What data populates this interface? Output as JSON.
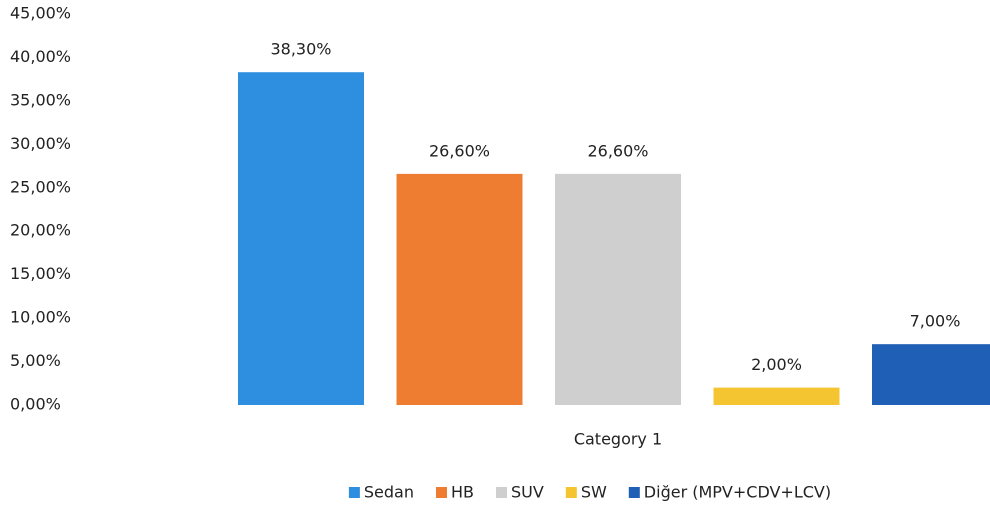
{
  "chart_data": {
    "type": "bar",
    "categories": [
      "Category 1"
    ],
    "series": [
      {
        "name": "Sedan",
        "color": "#2e8fe0",
        "values": [
          38.3
        ],
        "value_labels": [
          "38,30%"
        ]
      },
      {
        "name": "HB",
        "color": "#ef7d31",
        "values": [
          26.6
        ],
        "value_labels": [
          "26,60%"
        ]
      },
      {
        "name": "SUV",
        "color": "#cfcfcf",
        "values": [
          26.6
        ],
        "value_labels": [
          "26,60%"
        ]
      },
      {
        "name": "SW",
        "color": "#f5c431",
        "values": [
          2.0
        ],
        "value_labels": [
          "2,00%"
        ]
      },
      {
        "name": "Diğer (MPV+CDV+LCV)",
        "color": "#1f5fb5",
        "values": [
          7.0
        ],
        "value_labels": [
          "7,00%"
        ]
      }
    ],
    "ylim": [
      0,
      45
    ],
    "yticks": [
      {
        "value": 0,
        "label": "0,00%"
      },
      {
        "value": 5,
        "label": "5,00%"
      },
      {
        "value": 10,
        "label": "10,00%"
      },
      {
        "value": 15,
        "label": "15,00%"
      },
      {
        "value": 20,
        "label": "20,00%"
      },
      {
        "value": 25,
        "label": "25,00%"
      },
      {
        "value": 30,
        "label": "30,00%"
      },
      {
        "value": 35,
        "label": "35,00%"
      },
      {
        "value": 40,
        "label": "40,00%"
      },
      {
        "value": 45,
        "label": "45,00%"
      }
    ],
    "grid": false,
    "legend": "bottom"
  }
}
